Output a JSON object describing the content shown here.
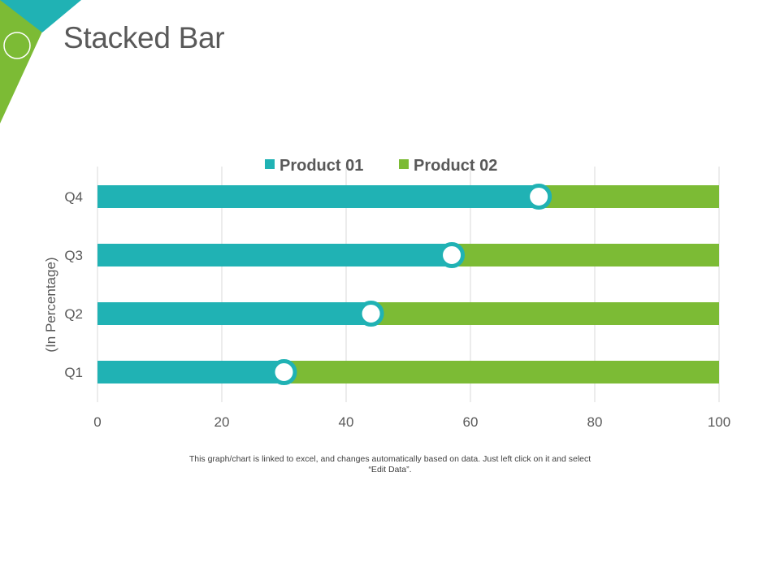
{
  "page": {
    "title": "Stacked Bar",
    "caption_line1": "This graph/chart is linked to excel,  and changes automatically based on data. Just left click on it and select",
    "caption_line2": "“Edit Data”."
  },
  "colors": {
    "teal": "#20b2b4",
    "green": "#7cbb35",
    "grid": "#d9d9d9",
    "text": "#595959"
  },
  "icons": {
    "circle-marker": "circle"
  },
  "chart_data": {
    "type": "bar",
    "orientation": "horizontal",
    "stacked": true,
    "title": "",
    "categories": [
      "Q1",
      "Q2",
      "Q3",
      "Q4"
    ],
    "series": [
      {
        "name": "Product 01",
        "values": [
          30,
          44,
          57,
          71
        ]
      },
      {
        "name": "Product 02",
        "values": [
          70,
          56,
          43,
          29
        ]
      }
    ],
    "xlabel": "",
    "ylabel": "(In Percentage)",
    "xlim": [
      0,
      100
    ],
    "xticks": [
      0,
      20,
      40,
      60,
      80,
      100
    ],
    "grid": "vertical",
    "legend": "top-center"
  }
}
